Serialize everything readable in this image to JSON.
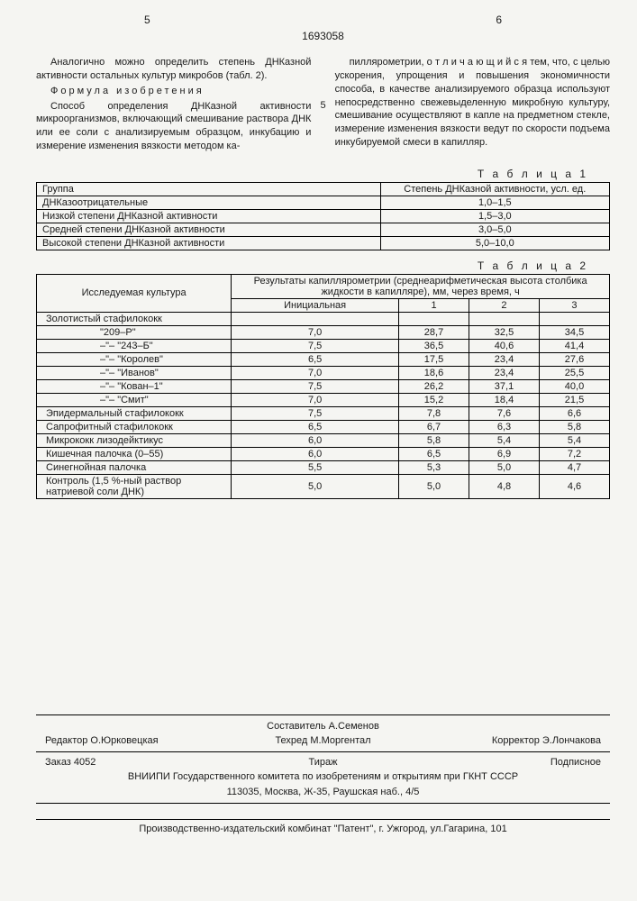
{
  "page_left": "5",
  "patent_num": "1693058",
  "page_right": "6",
  "para1": "Аналогично можно определить степень ДНКазной активности остальных культур микробов (табл. 2).",
  "formula_title": "Формула изобретения",
  "para2a": "Способ определения ДНКазной активности микроорганизмов, включающий смешивание раствора ДНК или ее соли с анализируемым образцом, инкубацию и измерение изменения вязкости методом ка-",
  "margin_num": "5",
  "para2b": "пиллярометрии, о т л и ч а ю щ и й с я  тем, что, с целью ускорения, упрощения и повышения экономичности способа, в качестве анализируемого образца используют непосредственно свежевыделенную микробную культуру, смешивание осуществляют в капле на предметном стекле, измерение изменения вязкости ведут по скорости подъема инкубируемой смеси в капилляр.",
  "table1": {
    "label": "Т а б л и ц а 1",
    "h1": "Группа",
    "h2": "Степень ДНКазной активности, усл. ед.",
    "rows": [
      [
        "ДНКазоотрицательные",
        "1,0–1,5"
      ],
      [
        "Низкой степени ДНКазной активности",
        "1,5–3,0"
      ],
      [
        "Средней степени ДНКазной активности",
        "3,0–5,0"
      ],
      [
        "Высокой степени ДНКазной активности",
        "5,0–10,0"
      ]
    ]
  },
  "table2": {
    "label": "Т а б л и ц а 2",
    "h1": "Исследуемая культура",
    "h2": "Результаты капиллярометрии (среднеарифметическая высота столбика жидкости в капилляре), мм, через время, ч",
    "sub": [
      "Инициальная",
      "1",
      "2",
      "3"
    ],
    "rows": [
      {
        "name": "Золотистый стафилококк",
        "sub": false,
        "v": [
          "",
          "",
          "",
          ""
        ]
      },
      {
        "name": "\"209–Р\"",
        "sub": true,
        "v": [
          "7,0",
          "28,7",
          "32,5",
          "34,5"
        ]
      },
      {
        "name": "–\"–   \"243–Б\"",
        "sub": true,
        "v": [
          "7,5",
          "36,5",
          "40,6",
          "41,4"
        ]
      },
      {
        "name": "–\"–   \"Королев\"",
        "sub": true,
        "v": [
          "6,5",
          "17,5",
          "23,4",
          "27,6"
        ]
      },
      {
        "name": "–\"–   \"Иванов\"",
        "sub": true,
        "v": [
          "7,0",
          "18,6",
          "23,4",
          "25,5"
        ]
      },
      {
        "name": "–\"–   \"Кован–1\"",
        "sub": true,
        "v": [
          "7,5",
          "26,2",
          "37,1",
          "40,0"
        ]
      },
      {
        "name": "–\"–   \"Смит\"",
        "sub": true,
        "v": [
          "7,0",
          "15,2",
          "18,4",
          "21,5"
        ]
      },
      {
        "name": "Эпидермальный стафилококк",
        "sub": false,
        "v": [
          "7,5",
          "7,8",
          "7,6",
          "6,6"
        ]
      },
      {
        "name": "Сапрофитный стафилококк",
        "sub": false,
        "v": [
          "6,5",
          "6,7",
          "6,3",
          "5,8"
        ]
      },
      {
        "name": "Микрококк лизодейктикус",
        "sub": false,
        "v": [
          "6,0",
          "5,8",
          "5,4",
          "5,4"
        ]
      },
      {
        "name": "Кишечная палочка (0–55)",
        "sub": false,
        "v": [
          "6,0",
          "6,5",
          "6,9",
          "7,2"
        ]
      },
      {
        "name": "Синегнойная палочка",
        "sub": false,
        "v": [
          "5,5",
          "5,3",
          "5,0",
          "4,7"
        ]
      },
      {
        "name": "Контроль (1,5 %-ный раствор натриевой соли ДНК)",
        "sub": false,
        "v": [
          "5,0",
          "5,0",
          "4,8",
          "4,6"
        ]
      }
    ]
  },
  "footer": {
    "composer": "Составитель  А.Семенов",
    "editor": "Редактор  О.Юрковецкая",
    "techred": "Техред М.Моргентал",
    "corrector": "Корректор  Э.Лончакова",
    "order": "Заказ  4052",
    "tirage": "Тираж",
    "subscript": "Подписное",
    "agency": "ВНИИПИ Государственного комитета по изобретениям и открытиям при ГКНТ СССР",
    "address": "113035, Москва, Ж-35, Раушская наб., 4/5",
    "print": "Производственно-издательский комбинат \"Патент\", г. Ужгород, ул.Гагарина, 101"
  }
}
